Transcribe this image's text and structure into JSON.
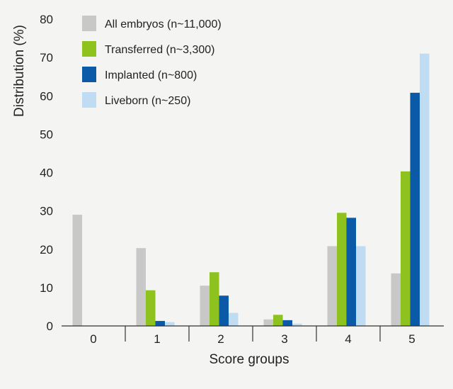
{
  "chart_data": {
    "type": "bar",
    "title": "",
    "xlabel": "Score groups",
    "ylabel": "Distribution (%)",
    "ylim": [
      0,
      80
    ],
    "yticks": [
      "0",
      "10",
      "20",
      "30",
      "40",
      "50",
      "60",
      "70",
      "80"
    ],
    "categories": [
      "0",
      "1",
      "2",
      "3",
      "4",
      "5"
    ],
    "legend_position": "top-left",
    "grid": false,
    "series": [
      {
        "name": "All embryos (n~11,000)",
        "color": "#c8c8c8",
        "values": [
          29,
          20.3,
          10.5,
          1.7,
          20.8,
          13.7
        ]
      },
      {
        "name": "Transferred (n~3,300)",
        "color": "#8dc21f",
        "values": [
          0,
          9.3,
          14,
          2.9,
          29.5,
          40.3
        ]
      },
      {
        "name": "Implanted (n~800)",
        "color": "#0a5aa8",
        "values": [
          0,
          1.3,
          7.9,
          1.5,
          28.2,
          60.8
        ]
      },
      {
        "name": "Liveborn (n~250)",
        "color": "#bfdcf2",
        "values": [
          0,
          1,
          3.4,
          0.6,
          20.8,
          71
        ]
      }
    ]
  }
}
